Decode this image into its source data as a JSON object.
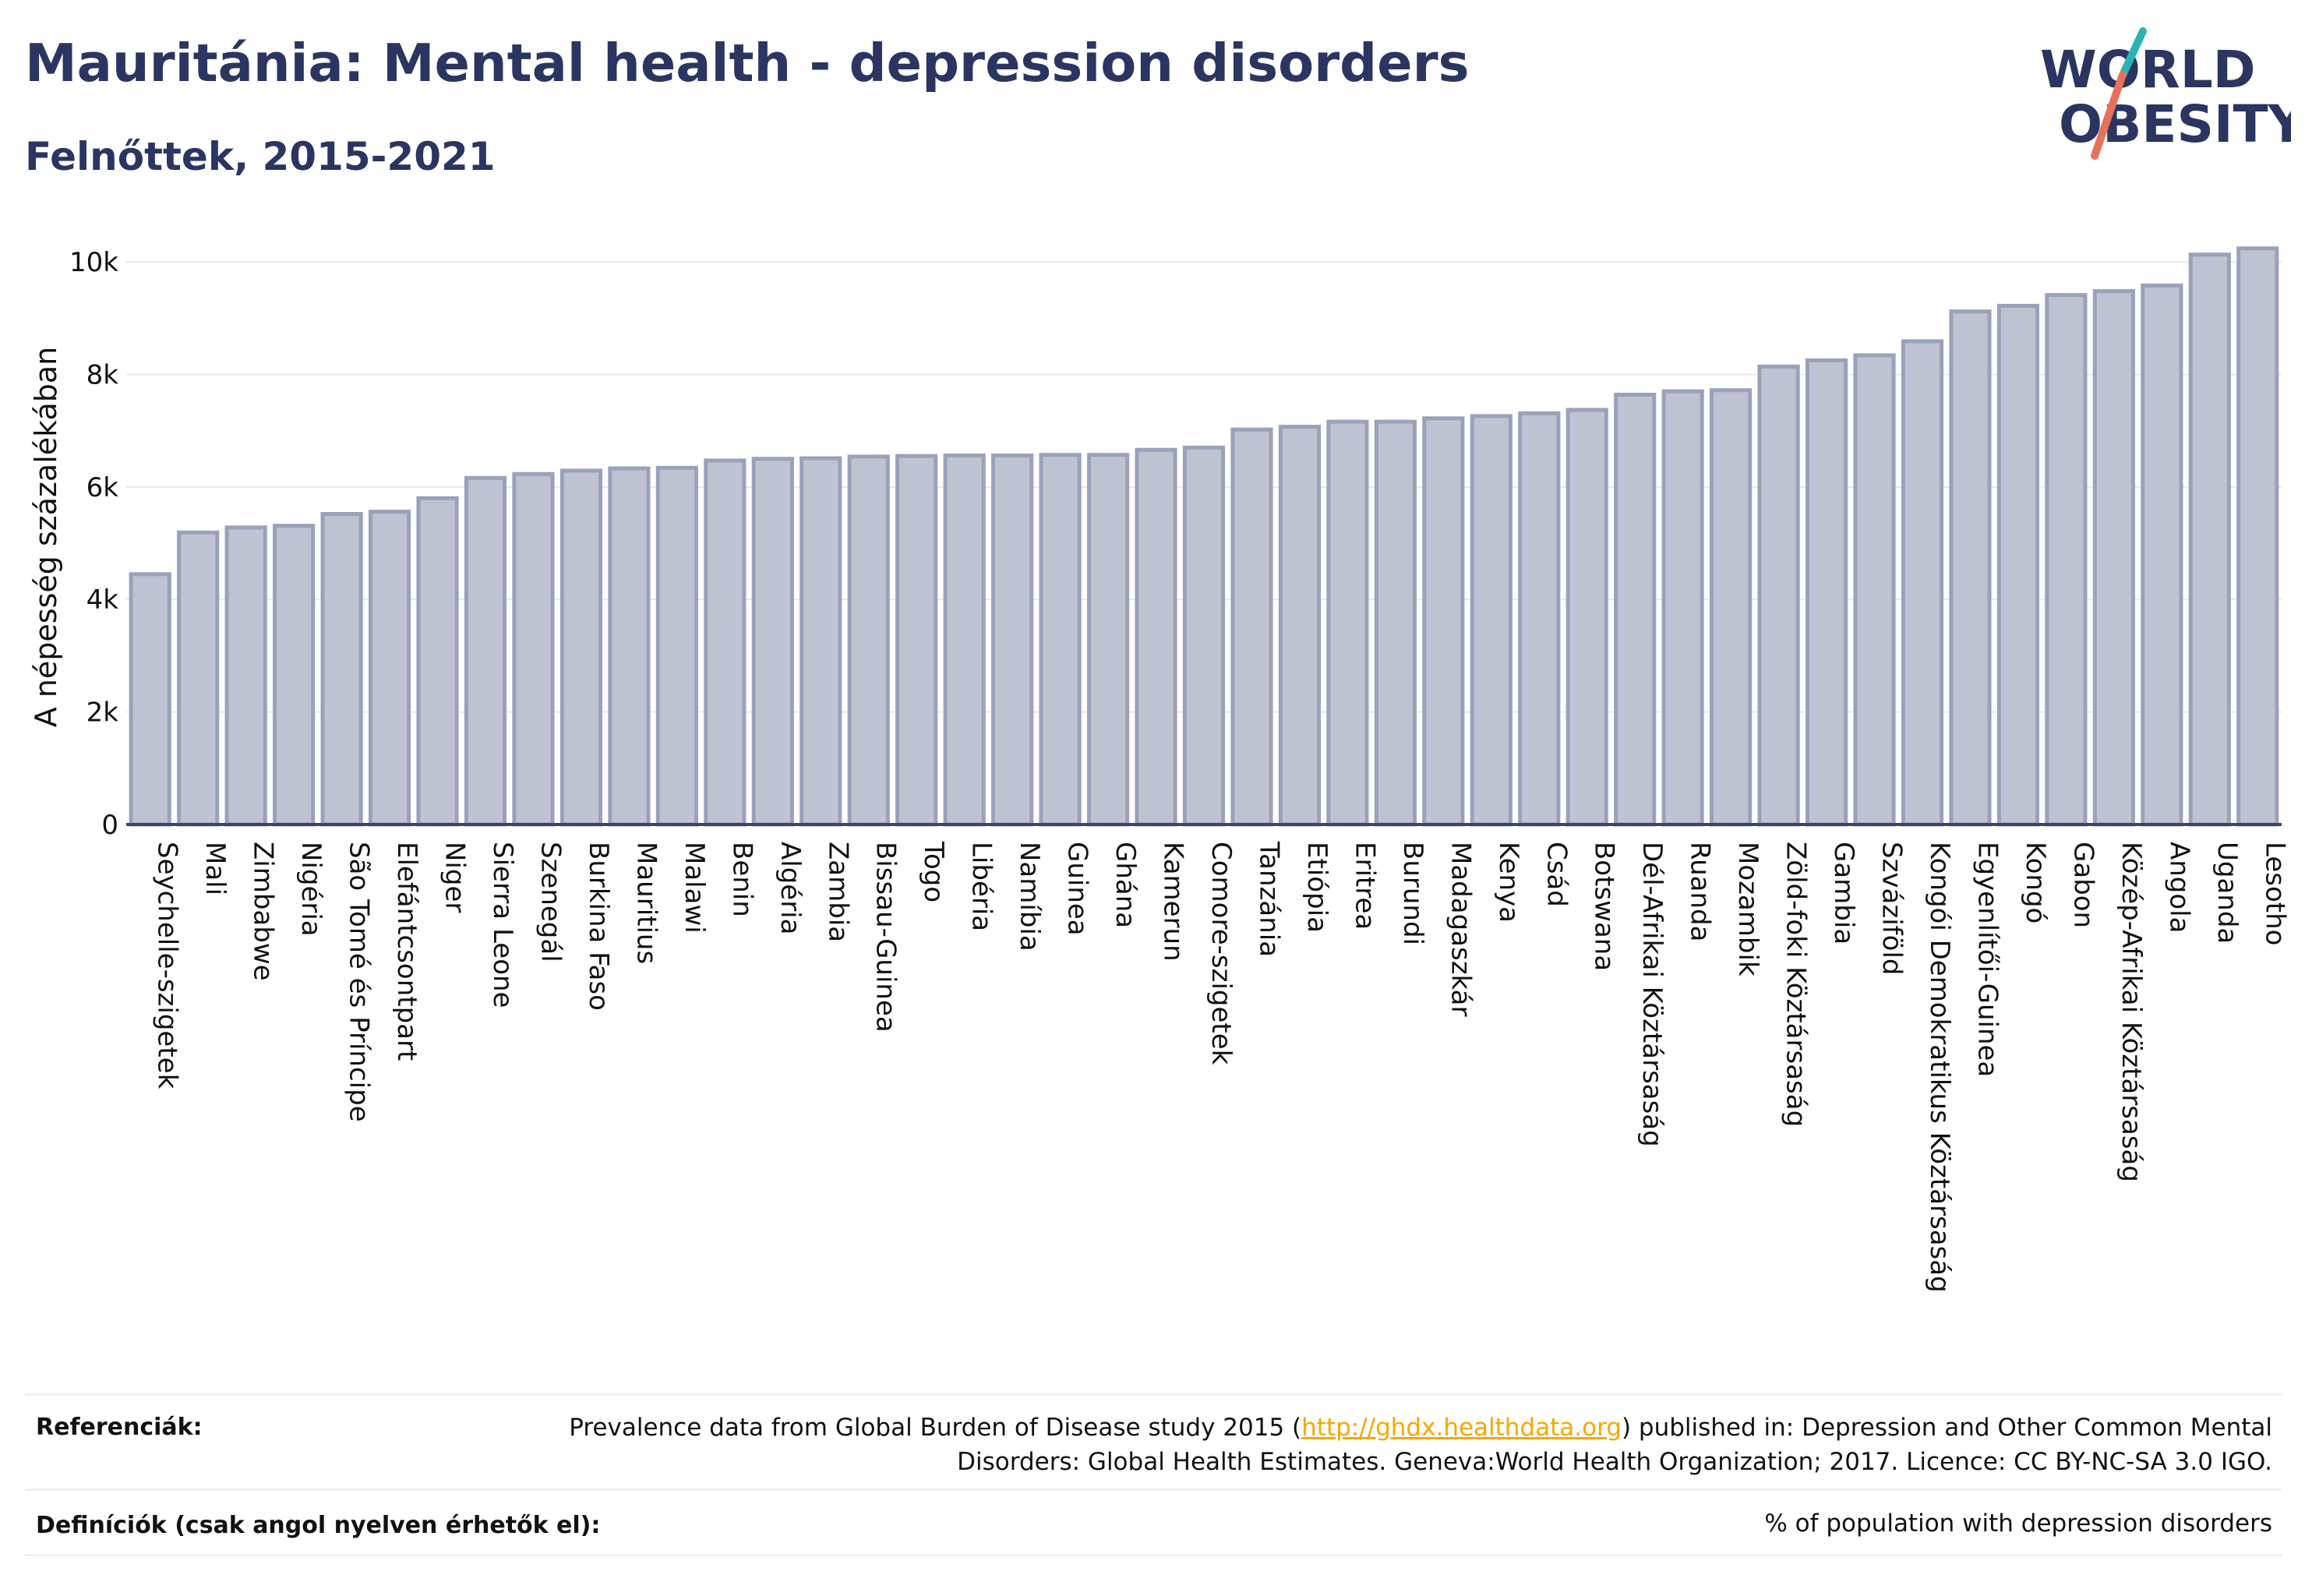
{
  "header": {
    "title": "Mauritánia: Mental health - depression disorders",
    "subtitle": "Felnőttek, 2015-2021"
  },
  "logo": {
    "line1": "WORLD",
    "line2": "OBESITY",
    "accent_teal": "#2bb3b1",
    "accent_coral": "#e8715c",
    "text_color": "#2a3561"
  },
  "chart_data": {
    "type": "bar",
    "ylabel": "A népesség százalékában",
    "ylim": [
      0,
      10500
    ],
    "yticks": [
      0,
      2000,
      4000,
      6000,
      8000,
      10000
    ],
    "ytick_labels": [
      "0",
      "2k",
      "4k",
      "6k",
      "8k",
      "10k"
    ],
    "grid": true,
    "bar_fill": "#bfc3d1",
    "bar_stroke": "#9aa1bb",
    "categories": [
      "Seychelle-szigetek",
      "Mali",
      "Zimbabwe",
      "Nigéria",
      "São Tomé és Príncipe",
      "Elefántcsontpart",
      "Niger",
      "Sierra Leone",
      "Szenegál",
      "Burkina Faso",
      "Mauritius",
      "Malawi",
      "Benin",
      "Algéria",
      "Zambia",
      "Bissau-Guinea",
      "Togo",
      "Libéria",
      "Namíbia",
      "Guinea",
      "Ghána",
      "Kamerun",
      "Comore-szigetek",
      "Tanzánia",
      "Etiópia",
      "Eritrea",
      "Burundi",
      "Madagaszkár",
      "Kenya",
      "Csád",
      "Botswana",
      "Dél-Afrikai Köztársaság",
      "Ruanda",
      "Mozambik",
      "Zöld-foki Köztársaság",
      "Gambia",
      "Szváziföld",
      "Kongói Demokratikus Köztársaság",
      "Egyenlítői-Guinea",
      "Kongó",
      "Gabon",
      "Közép-Afrikai Köztársaság",
      "Angola",
      "Uganda",
      "Lesotho"
    ],
    "values": [
      4450,
      5190,
      5280,
      5310,
      5520,
      5560,
      5800,
      6160,
      6230,
      6290,
      6330,
      6340,
      6470,
      6500,
      6510,
      6540,
      6550,
      6560,
      6560,
      6570,
      6570,
      6660,
      6700,
      7020,
      7070,
      7160,
      7160,
      7220,
      7260,
      7310,
      7370,
      7640,
      7700,
      7720,
      8140,
      8250,
      8340,
      8590,
      9120,
      9220,
      9410,
      9480,
      9580,
      10130,
      10240
    ]
  },
  "footer": {
    "references_label": "Referenciák:",
    "references_text_1": "Prevalence data from Global Burden of Disease study 2015 (",
    "references_link": "http://ghdx.healthdata.org",
    "references_text_2": ") published in: Depression and Other Common Mental Disorders: Global Health Estimates. Geneva:World Health Organization; 2017. Licence: CC BY-NC-SA 3.0 IGO.",
    "definitions_label": "Definíciók (csak angol nyelven érhetők el):",
    "definitions_text": "% of population with depression disorders"
  }
}
